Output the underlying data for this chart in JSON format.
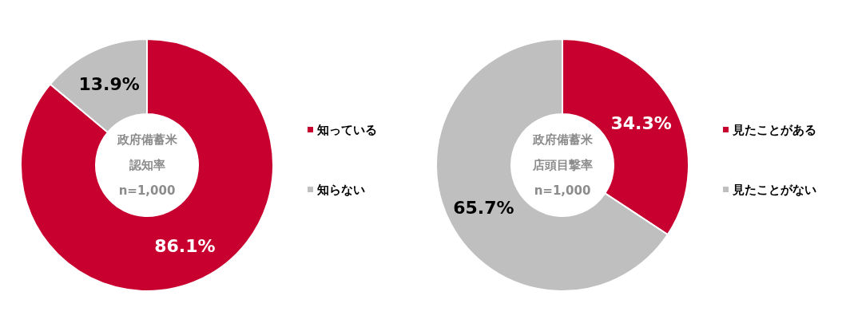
{
  "chart_data": [
    {
      "type": "donut",
      "title": "政府備蓄米",
      "subtitle": "認知率",
      "annotations": [
        "n=1,000"
      ],
      "categories": [
        "知っている",
        "知らない"
      ],
      "values": [
        86.1,
        13.9
      ],
      "colors": [
        "#c8002f",
        "#bfbfbf"
      ],
      "value_labels": [
        "86.1%",
        "13.9%"
      ],
      "legend": "right"
    },
    {
      "type": "donut",
      "title": "政府備蓄米",
      "subtitle": "店頭目撃率",
      "annotations": [
        "n=1,000"
      ],
      "categories": [
        "見たことがある",
        "見たことがない"
      ],
      "values": [
        34.3,
        65.7
      ],
      "colors": [
        "#c8002f",
        "#bfbfbf"
      ],
      "value_labels": [
        "34.3%",
        "65.7%"
      ],
      "legend": "right"
    }
  ]
}
